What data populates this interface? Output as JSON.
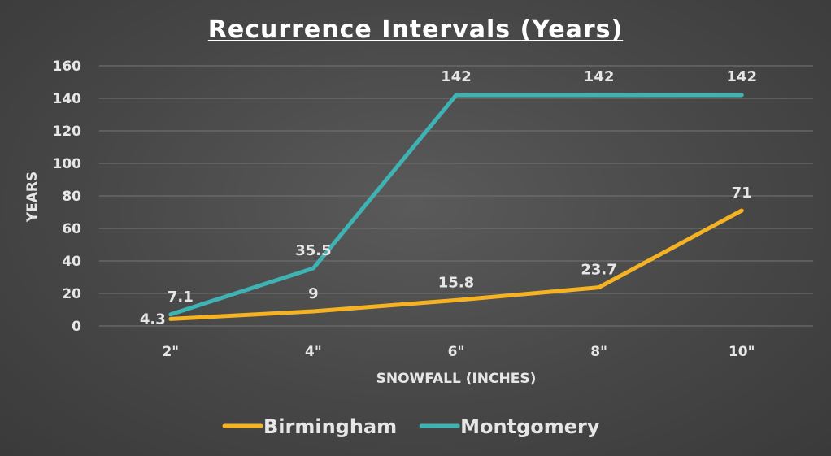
{
  "chart_data": {
    "type": "line",
    "title": "Recurrence Intervals (Years)",
    "xlabel": "SNOWFALL (INCHES)",
    "ylabel": "YEARS",
    "categories": [
      "2\"",
      "4\"",
      "6\"",
      "8\"",
      "10\""
    ],
    "ylim": [
      0,
      160
    ],
    "yticks": [
      0,
      20,
      40,
      60,
      80,
      100,
      120,
      140,
      160
    ],
    "grid": true,
    "legend": "bottom",
    "series": [
      {
        "name": "Birmingham",
        "color": "#f5b324",
        "values": [
          4.3,
          9,
          15.8,
          23.7,
          71
        ],
        "labels": [
          "4.3",
          "9",
          "15.8",
          "23.7",
          "71"
        ]
      },
      {
        "name": "Montgomery",
        "color": "#3fb2b4",
        "values": [
          7.1,
          35.5,
          142,
          142,
          142
        ],
        "labels": [
          "7.1",
          "35.5",
          "142",
          "142",
          "142"
        ]
      }
    ]
  }
}
